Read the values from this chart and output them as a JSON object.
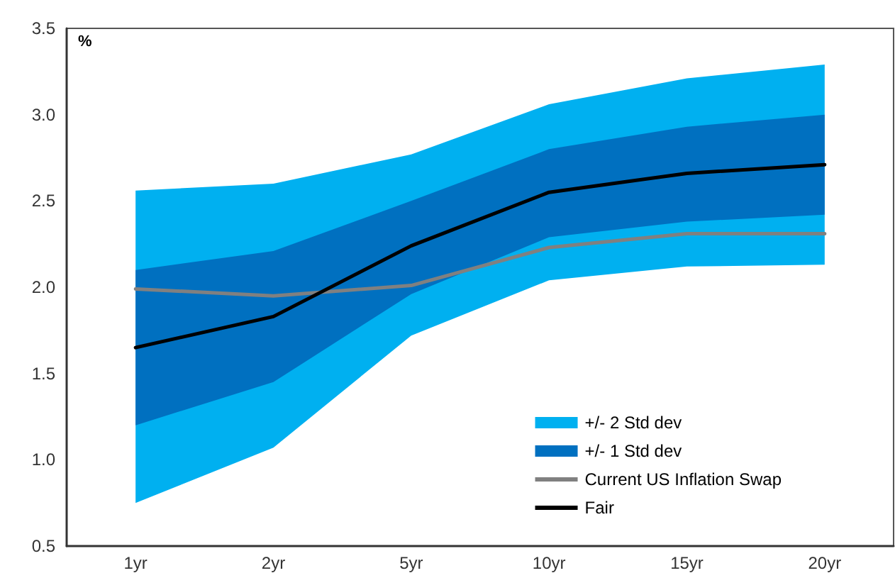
{
  "chart_data": {
    "type": "line",
    "ylabel": "%",
    "categories": [
      "1yr",
      "2yr",
      "5yr",
      "10yr",
      "15yr",
      "20yr"
    ],
    "ylim": [
      0.5,
      3.5
    ],
    "yticks": [
      {
        "value": 0.5,
        "label": "0.5"
      },
      {
        "value": 1,
        "label": "1.0"
      },
      {
        "value": 1.5,
        "label": "1.5"
      },
      {
        "value": 2,
        "label": "2.0"
      },
      {
        "value": 2.5,
        "label": "2.5"
      },
      {
        "value": 3,
        "label": "3.0"
      },
      {
        "value": 3.5,
        "label": "3.5"
      }
    ],
    "series": [
      {
        "name": "+/- 2 Std dev",
        "type": "line",
        "color": "#00b0f0",
        "values": [
          null,
          null,
          null,
          null,
          null,
          null
        ],
        "lower": [
          0.75,
          1.07,
          1.72,
          2.04,
          2.12,
          2.13
        ],
        "upper": [
          2.56,
          2.6,
          2.77,
          3.06,
          3.21,
          3.29
        ]
      },
      {
        "name": "+/- 1 Std dev",
        "type": "line",
        "color": "#0070c0",
        "values": [
          null,
          null,
          null,
          null,
          null,
          null
        ],
        "lower": [
          1.2,
          1.45,
          1.96,
          2.29,
          2.38,
          2.42
        ],
        "upper": [
          2.1,
          2.21,
          2.5,
          2.8,
          2.93,
          3.0
        ]
      },
      {
        "name": "Current US Inflation Swap",
        "type": "line",
        "color": "#808080",
        "values": [
          1.99,
          1.95,
          2.01,
          2.23,
          2.31,
          2.31
        ]
      },
      {
        "name": "Fair",
        "type": "line",
        "color": "#000000",
        "values": [
          1.65,
          1.83,
          2.24,
          2.55,
          2.66,
          2.71
        ]
      }
    ],
    "legend": "bottom right",
    "grid": false,
    "marker": "none",
    "line_style": "solid"
  }
}
